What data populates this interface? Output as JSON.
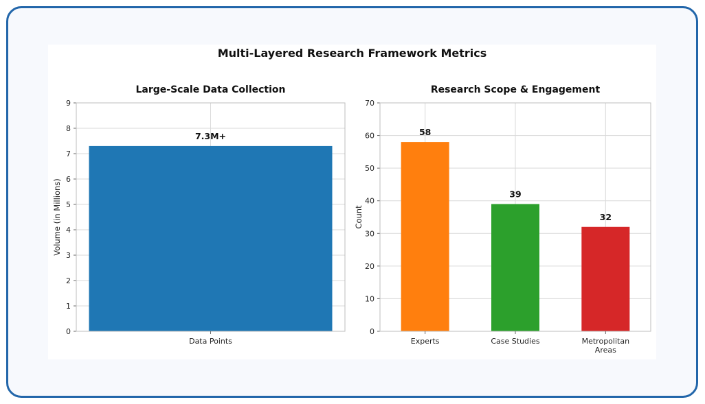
{
  "title": "Multi-Layered Research Framework Metrics",
  "chart_data": [
    {
      "type": "bar",
      "title": "Large-Scale Data Collection",
      "xlabel": "",
      "ylabel": "Volume (in Millions)",
      "categories": [
        "Data Points"
      ],
      "values": [
        7.3
      ],
      "data_labels": [
        "7.3M+"
      ],
      "colors": [
        "#1f77b4"
      ],
      "ylim": [
        0,
        9
      ],
      "yticks": [
        0,
        1,
        2,
        3,
        4,
        5,
        6,
        7,
        8,
        9
      ],
      "grid": true
    },
    {
      "type": "bar",
      "title": "Research Scope & Engagement",
      "xlabel": "",
      "ylabel": "Count",
      "categories": [
        "Experts",
        "Case Studies",
        "Metropolitan Areas"
      ],
      "category_lines": [
        [
          "Experts"
        ],
        [
          "Case Studies"
        ],
        [
          "Metropolitan",
          "Areas"
        ]
      ],
      "values": [
        58,
        39,
        32
      ],
      "data_labels": [
        "58",
        "39",
        "32"
      ],
      "colors": [
        "#ff7f0e",
        "#2ca02c",
        "#d62728"
      ],
      "ylim": [
        0,
        70
      ],
      "yticks": [
        0,
        10,
        20,
        30,
        40,
        50,
        60,
        70
      ],
      "grid": true
    }
  ]
}
